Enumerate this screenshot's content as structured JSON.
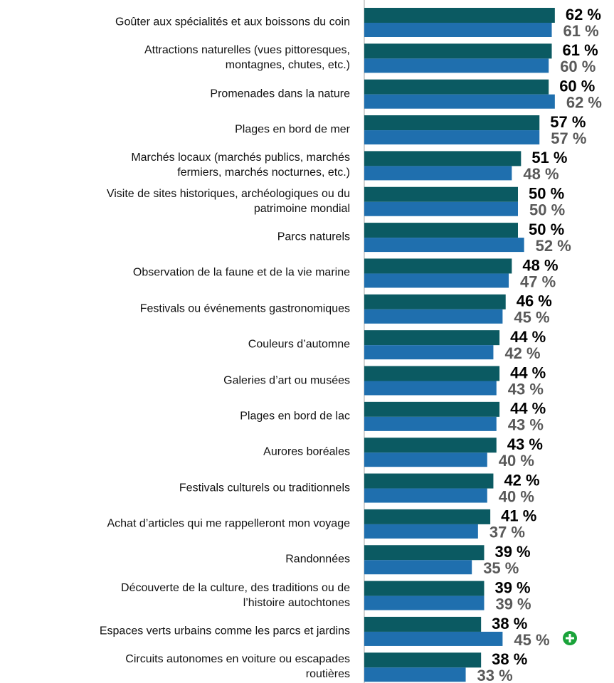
{
  "chart_data": {
    "type": "bar",
    "orientation": "horizontal",
    "categories": [
      "Goûter aux spécialités et aux boissons du coin",
      "Attractions naturelles (vues pittoresques,\nmontagnes, chutes, etc.)",
      "Promenades dans la nature",
      "Plages en bord de mer",
      "Marchés locaux (marchés publics, marchés\nfermiers, marchés nocturnes, etc.)",
      "Visite de sites historiques, archéologiques ou du\npatrimoine mondial",
      "Parcs naturels",
      "Observation de la faune et de la vie marine",
      "Festivals ou événements gastronomiques",
      "Couleurs d’automne",
      "Galeries d’art ou musées",
      "Plages en bord de lac",
      "Aurores boréales",
      "Festivals culturels ou traditionnels",
      "Achat d’articles qui me rappelleront mon voyage",
      "Randonnées",
      "Découverte de la culture, des traditions ou de\nl’histoire autochtones",
      "Espaces verts urbains comme les parcs et jardins",
      "Circuits autonomes en voiture ou escapades\nroutières"
    ],
    "series": [
      {
        "color": "#0b5a62",
        "label_color": "#000000",
        "values": [
          62,
          61,
          60,
          57,
          51,
          50,
          50,
          48,
          46,
          44,
          44,
          44,
          43,
          42,
          41,
          39,
          39,
          38,
          38
        ],
        "value_labels": [
          "62 %",
          "61 %",
          "60 %",
          "57 %",
          "51 %",
          "50 %",
          "50 %",
          "48 %",
          "46 %",
          "44 %",
          "44 %",
          "44 %",
          "43 %",
          "42 %",
          "41 %",
          "39 %",
          "39 %",
          "38 %",
          "38 %"
        ]
      },
      {
        "color": "#1f6fae",
        "label_color": "#595959",
        "values": [
          61,
          60,
          62,
          57,
          48,
          50,
          52,
          47,
          45,
          42,
          43,
          43,
          40,
          40,
          37,
          35,
          39,
          45,
          33
        ],
        "value_labels": [
          "61 %",
          "60 %",
          "62 %",
          "57 %",
          "48 %",
          "50 %",
          "52 %",
          "47 %",
          "45 %",
          "42 %",
          "43 %",
          "43 %",
          "40 %",
          "40 %",
          "37 %",
          "35 %",
          "39 %",
          "45 %",
          "33 %"
        ]
      }
    ],
    "xlim": [
      0,
      80
    ]
  }
}
